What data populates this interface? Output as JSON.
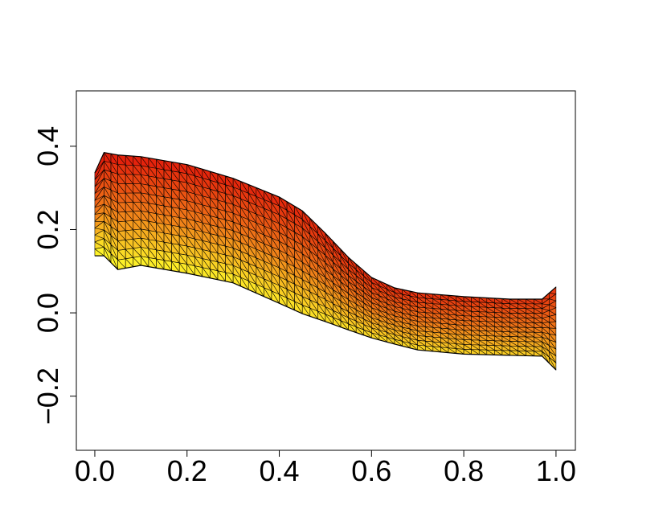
{
  "chart_data": {
    "type": "band",
    "x": [
      0.0,
      0.02,
      0.05,
      0.1,
      0.2,
      0.3,
      0.4,
      0.45,
      0.5,
      0.55,
      0.6,
      0.65,
      0.7,
      0.8,
      0.9,
      0.97,
      1.0
    ],
    "upper": [
      0.336,
      0.385,
      0.379,
      0.375,
      0.356,
      0.323,
      0.278,
      0.245,
      0.191,
      0.133,
      0.085,
      0.06,
      0.048,
      0.039,
      0.033,
      0.033,
      0.062
    ],
    "lower": [
      0.137,
      0.137,
      0.104,
      0.114,
      0.095,
      0.072,
      0.023,
      -0.002,
      -0.021,
      -0.041,
      -0.06,
      -0.075,
      -0.089,
      -0.099,
      -0.102,
      -0.104,
      -0.137
    ],
    "colors": [
      "#e3170a",
      "#f07a18",
      "#ffff2a"
    ],
    "xlim": [
      -0.04,
      1.042
    ],
    "ylim": [
      -0.33,
      0.533
    ],
    "xticks": [
      {
        "value": 0,
        "label": "0.0"
      },
      {
        "value": 0.2,
        "label": "0.2"
      },
      {
        "value": 0.4,
        "label": "0.4"
      },
      {
        "value": 0.6,
        "label": "0.6"
      },
      {
        "value": 0.8,
        "label": "0.8"
      },
      {
        "value": 1,
        "label": "1.0"
      }
    ],
    "yticks": [
      {
        "value": -0.2,
        "label": "−0.2"
      },
      {
        "value": 0,
        "label": "0.0"
      },
      {
        "value": 0.2,
        "label": "0.2"
      },
      {
        "value": 0.4,
        "label": "0.4"
      }
    ]
  }
}
